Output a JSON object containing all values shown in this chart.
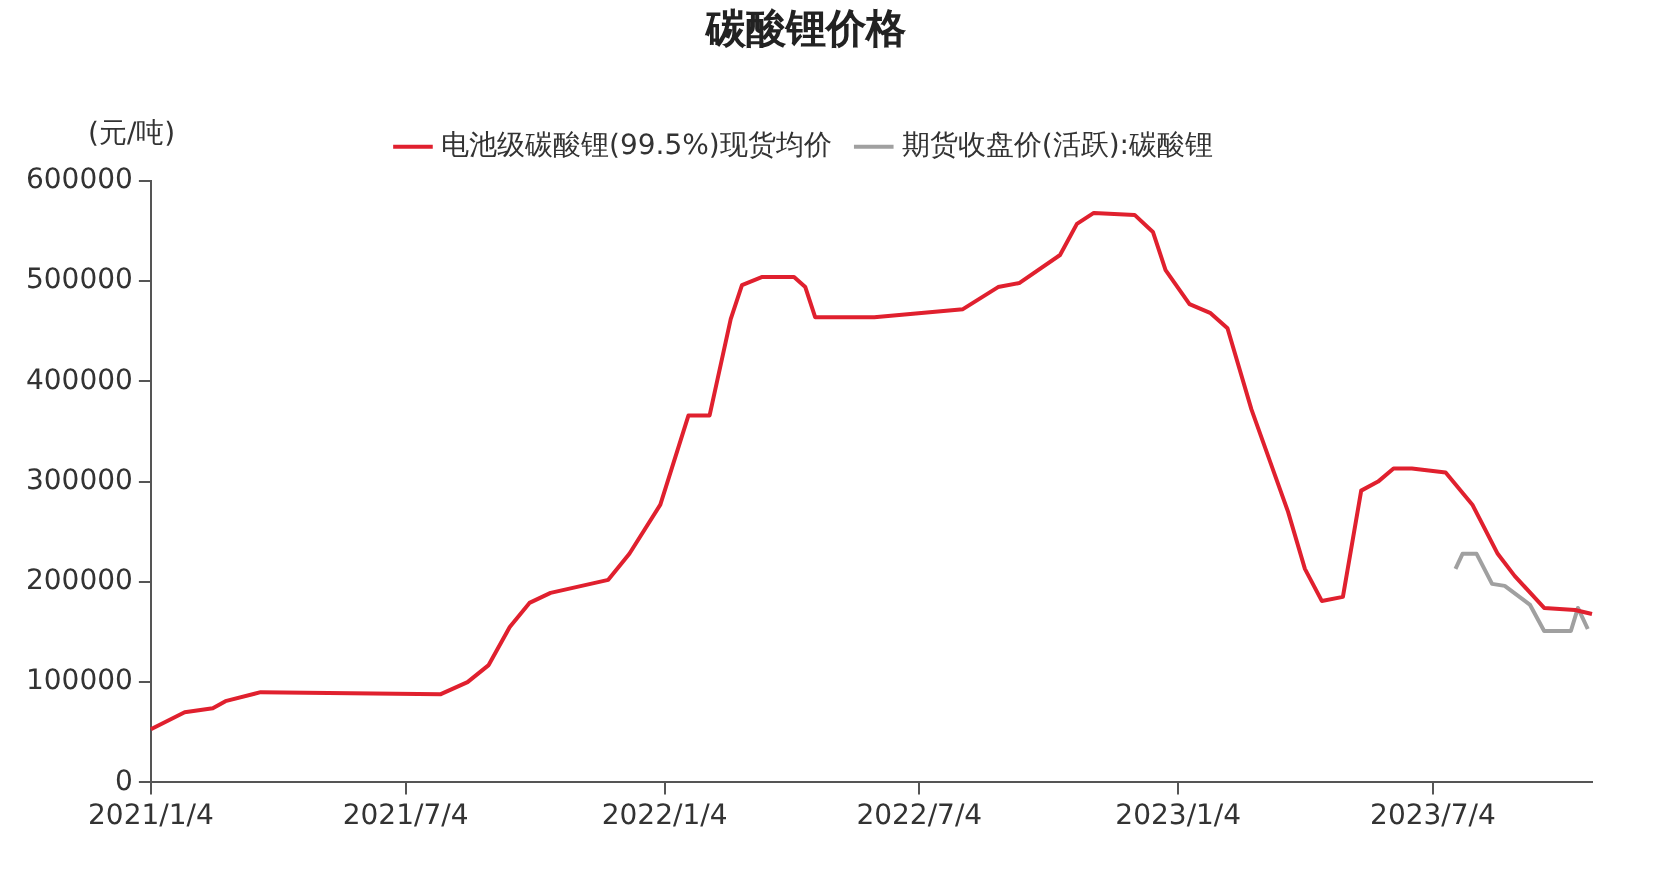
{
  "chart_data": {
    "type": "line",
    "title": "碳酸锂价格",
    "ylabel": "(元/吨)",
    "legend": "top",
    "grid": false,
    "marker": "none",
    "line_style": "solid",
    "xlim": [
      "2021-01-04",
      "2023-10-25"
    ],
    "xticks": [
      {
        "value": "2021-01-04",
        "label": "2021/1/4"
      },
      {
        "value": "2021-07-04",
        "label": "2021/7/4"
      },
      {
        "value": "2022-01-04",
        "label": "2022/1/4"
      },
      {
        "value": "2022-07-04",
        "label": "2022/7/4"
      },
      {
        "value": "2023-01-04",
        "label": "2023/1/4"
      },
      {
        "value": "2023-07-04",
        "label": "2023/7/4"
      }
    ],
    "ylim": [
      0,
      600000
    ],
    "yticks": [
      0,
      100000,
      200000,
      300000,
      400000,
      500000,
      600000
    ],
    "series": [
      {
        "name": "电池级碳酸锂(99.5%)现货均价",
        "color": "#e0202e",
        "x": [
          "2021-01-04",
          "2021-01-28",
          "2021-02-17",
          "2021-02-26",
          "2021-03-23",
          "2021-07-29",
          "2021-08-17",
          "2021-09-01",
          "2021-09-16",
          "2021-09-30",
          "2021-10-15",
          "2021-11-25",
          "2021-12-10",
          "2022-01-01",
          "2022-01-21",
          "2022-02-05",
          "2022-02-20",
          "2022-02-28",
          "2022-03-14",
          "2022-04-06",
          "2022-04-14",
          "2022-04-21",
          "2022-06-02",
          "2022-08-04",
          "2022-08-29",
          "2022-09-13",
          "2022-10-12",
          "2022-10-24",
          "2022-11-05",
          "2022-12-04",
          "2022-12-17",
          "2022-12-26",
          "2023-01-12",
          "2023-01-27",
          "2023-02-08",
          "2023-02-25",
          "2023-03-23",
          "2023-04-04",
          "2023-04-16",
          "2023-05-01",
          "2023-05-14",
          "2023-05-26",
          "2023-06-06",
          "2023-06-19",
          "2023-07-13",
          "2023-08-01",
          "2023-08-19",
          "2023-08-31",
          "2023-09-21",
          "2023-10-13",
          "2023-10-25"
        ],
        "values": [
          53000,
          70000,
          74000,
          81000,
          90000,
          88000,
          100000,
          117000,
          155000,
          179000,
          189000,
          202000,
          228000,
          277000,
          366000,
          366000,
          462000,
          496000,
          504000,
          504000,
          494000,
          464000,
          464000,
          472000,
          494000,
          498000,
          526000,
          557000,
          568000,
          566000,
          549000,
          511000,
          477000,
          468000,
          453000,
          372000,
          270000,
          213000,
          181000,
          185000,
          291000,
          300000,
          313000,
          313000,
          309000,
          277000,
          228000,
          206000,
          174000,
          172000,
          168000
        ]
      },
      {
        "name": "期货收盘价(活跃):碳酸锂",
        "color": "#a0a0a0",
        "x": [
          "2023-07-20",
          "2023-07-25",
          "2023-08-04",
          "2023-08-15",
          "2023-08-24",
          "2023-09-11",
          "2023-09-21",
          "2023-10-10",
          "2023-10-15",
          "2023-10-22"
        ],
        "values": [
          213000,
          228000,
          228000,
          198000,
          196000,
          177000,
          151000,
          151000,
          174000,
          153000
        ]
      }
    ]
  }
}
